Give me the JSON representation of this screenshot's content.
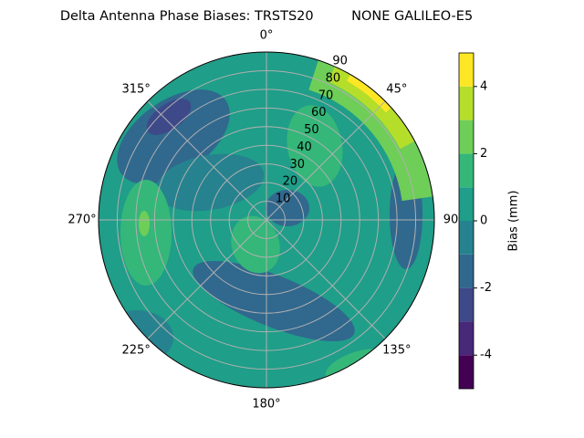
{
  "chart_data": {
    "type": "polar-contour",
    "title": "Delta Antenna Phase Biases: TRSTS20         NONE GALILEO-E5",
    "rlim": [
      0,
      90
    ],
    "rticks": [
      10,
      20,
      30,
      40,
      50,
      60,
      70,
      80,
      90
    ],
    "thetaticks": [
      {
        "value": 0,
        "label": "0°"
      },
      {
        "value": 45,
        "label": "45°"
      },
      {
        "value": 90,
        "label": "90"
      },
      {
        "value": 135,
        "label": "135°"
      },
      {
        "value": 180,
        "label": "180°"
      },
      {
        "value": 225,
        "label": "225°"
      },
      {
        "value": 270,
        "label": "270°"
      },
      {
        "value": 315,
        "label": "315°"
      }
    ],
    "grid": true,
    "levels": [
      -5,
      -4,
      -3,
      -2,
      -1,
      0,
      1,
      2,
      3,
      4,
      5
    ],
    "colors": [
      "#440154",
      "#482878",
      "#3e4989",
      "#31688e",
      "#26828e",
      "#1f9e89",
      "#35b779",
      "#6ece58",
      "#b5de2b",
      "#fde725"
    ],
    "colorbar_label": "Bias (mm)",
    "colorbar_ticks": [
      -4,
      -2,
      0,
      2,
      4
    ]
  }
}
